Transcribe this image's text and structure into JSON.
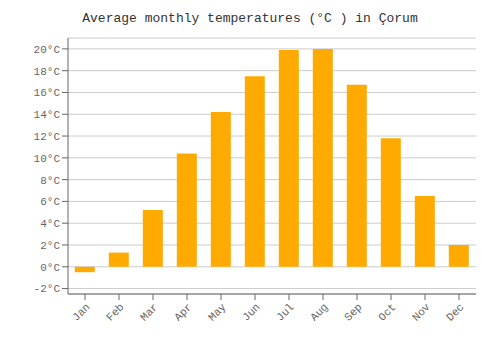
{
  "chart_data": {
    "type": "bar",
    "title": "Average monthly temperatures (°C ) in Çorum",
    "categories": [
      "Jan",
      "Feb",
      "Mar",
      "Apr",
      "May",
      "Jun",
      "Jul",
      "Aug",
      "Sep",
      "Oct",
      "Nov",
      "Dec"
    ],
    "values": [
      -0.5,
      1.3,
      5.2,
      10.4,
      14.2,
      17.5,
      19.9,
      20.0,
      16.7,
      11.8,
      6.5,
      2.0
    ],
    "color": "#FFAA00",
    "ylim": [
      -2.5,
      21
    ],
    "yticks": [
      {
        "value": -2,
        "label": "-2°C"
      },
      {
        "value": 0,
        "label": "0°C"
      },
      {
        "value": 2,
        "label": "2°C"
      },
      {
        "value": 4,
        "label": "4°C"
      },
      {
        "value": 6,
        "label": "6°C"
      },
      {
        "value": 8,
        "label": "8°C"
      },
      {
        "value": 10,
        "label": "10°C"
      },
      {
        "value": 12,
        "label": "12°C"
      },
      {
        "value": 14,
        "label": "14°C"
      },
      {
        "value": 16,
        "label": "16°C"
      },
      {
        "value": 18,
        "label": "18°C"
      },
      {
        "value": 20,
        "label": "20°C"
      }
    ],
    "grid": true
  }
}
